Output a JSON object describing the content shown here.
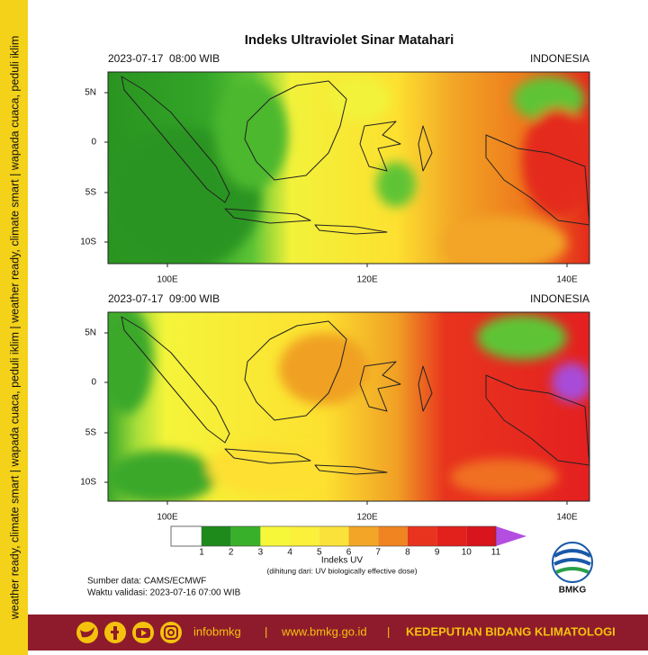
{
  "title": "Indeks Ultraviolet Sinar Matahari",
  "side_banner": "weather ready, climate smart | wapada cuaca, peduli iklim | weather ready, climate smart | wapada cuaca, peduli iklim",
  "panels": [
    {
      "datetime": "2023-07-17  08:00 WIB",
      "region": "INDONESIA"
    },
    {
      "datetime": "2023-07-17  09:00 WIB",
      "region": "INDONESIA"
    }
  ],
  "lat_labels": [
    "5N",
    "0",
    "5S",
    "10S"
  ],
  "lon_labels": [
    "100E",
    "120E",
    "140E"
  ],
  "colorbar": {
    "ticks": [
      1,
      2,
      3,
      4,
      5,
      6,
      7,
      8,
      9,
      10,
      11
    ],
    "label": "Indeks UV",
    "note": "(dihitung dari: UV biologically effective dose)"
  },
  "source": "Sumber data: CAMS/ECMWF",
  "validity": "Waktu validasi: 2023-07-16 07:00 WIB",
  "logo": "BMKG",
  "footer": {
    "handle": "infobmkg",
    "separator": "|",
    "website": "www.bmkg.go.id",
    "department": "KEDEPUTIAN BIDANG KLIMATOLOGI"
  }
}
